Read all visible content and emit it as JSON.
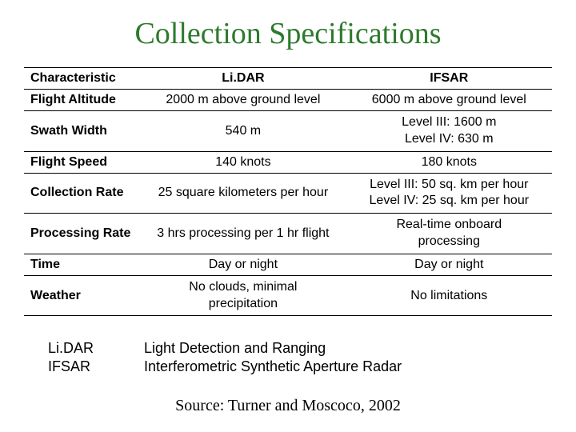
{
  "title": "Collection Specifications",
  "table": {
    "headers": {
      "characteristic": "Characteristic",
      "lidar": "Li.DAR",
      "ifsar": "IFSAR"
    },
    "rows": [
      {
        "label": "Flight Altitude",
        "lidar": "2000 m above ground level",
        "ifsar": "6000 m above ground level"
      },
      {
        "label": "Swath Width",
        "lidar": "540 m",
        "ifsar_line1": "Level III: 1600 m",
        "ifsar_line2": "Level IV: 630 m"
      },
      {
        "label": "Flight Speed",
        "lidar": "140 knots",
        "ifsar": "180 knots"
      },
      {
        "label": "Collection Rate",
        "lidar": "25 square kilometers per hour",
        "ifsar_line1": "Level III: 50 sq. km per hour",
        "ifsar_line2": "Level IV: 25 sq. km per hour"
      },
      {
        "label": "Processing Rate",
        "lidar": "3 hrs processing per 1 hr flight",
        "ifsar_line1": "Real-time onboard",
        "ifsar_line2": "processing"
      },
      {
        "label": "Time",
        "lidar": "Day or night",
        "ifsar": "Day or night"
      },
      {
        "label": "Weather",
        "lidar_line1": "No clouds, minimal",
        "lidar_line2": "precipitation",
        "ifsar": "No limitations"
      }
    ]
  },
  "definitions": {
    "lidar_abbr": "Li.DAR",
    "lidar_full": "Light Detection and Ranging",
    "ifsar_abbr": "IFSAR",
    "ifsar_full": "Interferometric Synthetic Aperture Radar"
  },
  "source": "Source: Turner and Moscoco, 2002",
  "colors": {
    "title_color": "#2d7a2d",
    "text_color": "#000000",
    "border_color": "#000000",
    "background": "#ffffff"
  },
  "fonts": {
    "title_family": "Times New Roman",
    "body_family": "Arial",
    "title_size": 38,
    "table_size": 16,
    "def_size": 18,
    "source_size": 20
  }
}
